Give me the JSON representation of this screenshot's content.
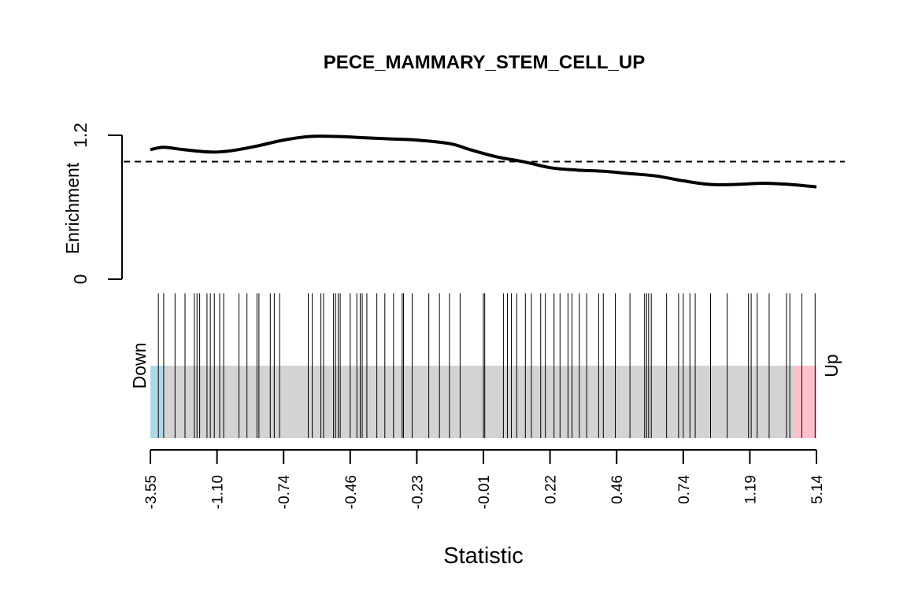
{
  "chart_data": {
    "type": "barcode",
    "title": "PECE_MAMMARY_STEM_CELL_UP",
    "xlabel": "Statistic",
    "ylabel": "Enrichment",
    "y_ticks": [
      "0",
      "1.2"
    ],
    "ylim": [
      0,
      1.2
    ],
    "reference_line": 0.98,
    "x_tick_labels": [
      "-3.55",
      "-1.10",
      "-0.74",
      "-0.46",
      "-0.23",
      "-0.01",
      "0.22",
      "0.46",
      "0.74",
      "1.19",
      "5.14"
    ],
    "x_rank_range": [
      0,
      1
    ],
    "side_labels": {
      "left": "Down",
      "right": "Up"
    },
    "down_fraction": 0.02,
    "up_fraction": 0.033,
    "colors": {
      "down": "#add8e6",
      "up": "#ffc0cb",
      "middle": "#d3d3d3",
      "bars": "#000000",
      "curve": "#000000"
    },
    "enrichment_curve": {
      "x": [
        0,
        0.02,
        0.05,
        0.09,
        0.12,
        0.16,
        0.2,
        0.24,
        0.28,
        0.32,
        0.36,
        0.4,
        0.45,
        0.48,
        0.52,
        0.56,
        0.6,
        0.64,
        0.68,
        0.72,
        0.76,
        0.8,
        0.84,
        0.88,
        0.92,
        0.96,
        1.0
      ],
      "y": [
        1.08,
        1.1,
        1.08,
        1.06,
        1.07,
        1.11,
        1.16,
        1.19,
        1.19,
        1.18,
        1.17,
        1.16,
        1.13,
        1.08,
        1.02,
        0.98,
        0.93,
        0.91,
        0.9,
        0.88,
        0.86,
        0.82,
        0.79,
        0.79,
        0.8,
        0.79,
        0.77
      ]
    },
    "barcode_positions": [
      0.012,
      0.02,
      0.037,
      0.052,
      0.066,
      0.07,
      0.074,
      0.085,
      0.09,
      0.096,
      0.104,
      0.11,
      0.133,
      0.145,
      0.16,
      0.163,
      0.18,
      0.186,
      0.194,
      0.237,
      0.243,
      0.256,
      0.26,
      0.275,
      0.278,
      0.282,
      0.285,
      0.3,
      0.31,
      0.315,
      0.318,
      0.325,
      0.34,
      0.352,
      0.365,
      0.378,
      0.38,
      0.393,
      0.418,
      0.434,
      0.449,
      0.465,
      0.5,
      0.502,
      0.53,
      0.536,
      0.542,
      0.55,
      0.563,
      0.572,
      0.586,
      0.593,
      0.606,
      0.615,
      0.627,
      0.633,
      0.644,
      0.655,
      0.673,
      0.68,
      0.698,
      0.72,
      0.742,
      0.745,
      0.748,
      0.752,
      0.775,
      0.793,
      0.8,
      0.81,
      0.818,
      0.841,
      0.866,
      0.898,
      0.902,
      0.911,
      0.929,
      0.955,
      0.96,
      0.978,
      0.998
    ]
  }
}
